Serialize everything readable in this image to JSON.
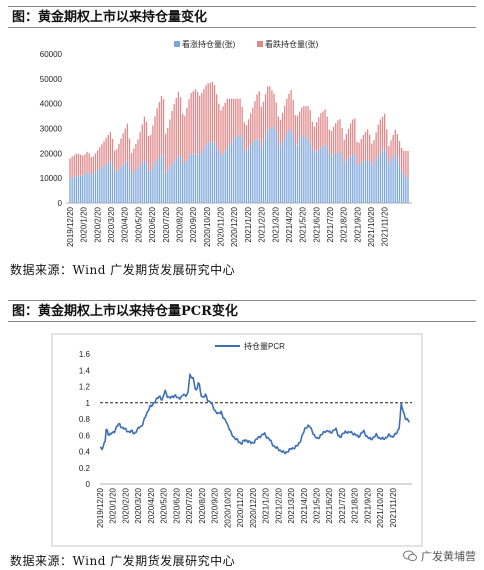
{
  "chart1": {
    "heading": "图：黄金期权上市以来持仓量变化",
    "source": "数据来源：Wind 广发期货发展研究中心"
  },
  "chart2": {
    "heading": "图：黄金期权上市以来持仓量PCR变化",
    "source": "数据来源：Wind 广发期货发展研究中心"
  },
  "watermark": "广发黄埔营",
  "colors": {
    "call": "#7ea6dc",
    "put": "#e0898a",
    "pcr_line": "#3d6fb5"
  },
  "chart_data": [
    {
      "type": "bar",
      "stacked": true,
      "legend_position": "top",
      "ylim": [
        0,
        60000
      ],
      "yticks": [
        "0",
        "10000",
        "20000",
        "30000",
        "40000",
        "50000",
        "60000"
      ],
      "xtick_labels": [
        "2019/12/20",
        "2020/1/20",
        "2020/2/20",
        "2020/3/20",
        "2020/4/20",
        "2020/5/20",
        "2020/6/20",
        "2020/7/20",
        "2020/8/20",
        "2020/9/20",
        "2020/10/20",
        "2020/11/20",
        "2020/12/20",
        "2021/1/20",
        "2021/2/20",
        "2021/3/20",
        "2021/4/20",
        "2021/5/20",
        "2021/6/20",
        "2021/7/20",
        "2021/8/20",
        "2021/9/20",
        "2021/10/20",
        "2021/11/20"
      ],
      "x_start": "2019/12/20",
      "series": [
        {
          "name": "看涨持仓量(张)",
          "anchors": [
            [
              0,
              10000
            ],
            [
              0.5,
              11000
            ],
            [
              1,
              11000
            ],
            [
              1.3,
              13000
            ],
            [
              1.6,
              11000
            ],
            [
              2,
              13000
            ],
            [
              2.5,
              15000
            ],
            [
              3,
              17000
            ],
            [
              3.3,
              12000
            ],
            [
              3.8,
              15000
            ],
            [
              4.2,
              17000
            ],
            [
              4.5,
              12000
            ],
            [
              5,
              14000
            ],
            [
              5.5,
              18000
            ],
            [
              5.8,
              12000
            ],
            [
              6.3,
              17000
            ],
            [
              6.8,
              20000
            ],
            [
              7,
              12000
            ],
            [
              7.5,
              16000
            ],
            [
              8,
              20000
            ],
            [
              8.3,
              15000
            ],
            [
              8.8,
              20000
            ],
            [
              9.2,
              20000
            ],
            [
              9.5,
              19000
            ],
            [
              10,
              24000
            ],
            [
              10.5,
              25000
            ],
            [
              11,
              19000
            ],
            [
              11.5,
              22000
            ],
            [
              12,
              26000
            ],
            [
              12.5,
              28000
            ],
            [
              12.8,
              20000
            ],
            [
              13.4,
              25000
            ],
            [
              13.8,
              26000
            ],
            [
              14,
              22000
            ],
            [
              14.5,
              30000
            ],
            [
              15,
              31000
            ],
            [
              15.3,
              22000
            ],
            [
              15.9,
              29000
            ],
            [
              16.2,
              30000
            ],
            [
              16.5,
              22000
            ],
            [
              17,
              28000
            ],
            [
              17.5,
              25000
            ],
            [
              17.8,
              20000
            ],
            [
              18.3,
              22000
            ],
            [
              18.7,
              24000
            ],
            [
              19,
              19000
            ],
            [
              19.5,
              20000
            ],
            [
              19.8,
              21000
            ],
            [
              20,
              16000
            ],
            [
              20.5,
              19000
            ],
            [
              20.8,
              20000
            ],
            [
              21,
              15000
            ],
            [
              21.5,
              17000
            ],
            [
              21.8,
              18000
            ],
            [
              22.1,
              15000
            ],
            [
              22.6,
              20000
            ],
            [
              23,
              22000
            ],
            [
              23.3,
              16000
            ],
            [
              23.8,
              20000
            ],
            [
              24.3,
              12000
            ],
            [
              24.6,
              10000
            ]
          ]
        },
        {
          "name": "看跌持仓量(张)",
          "anchors": [
            [
              0,
              8000
            ],
            [
              0.5,
              9000
            ],
            [
              1,
              8000
            ],
            [
              1.3,
              8000
            ],
            [
              1.6,
              7000
            ],
            [
              2,
              8000
            ],
            [
              2.5,
              10000
            ],
            [
              3,
              12000
            ],
            [
              3.3,
              8000
            ],
            [
              3.8,
              12000
            ],
            [
              4.2,
              15000
            ],
            [
              4.5,
              8000
            ],
            [
              5,
              12000
            ],
            [
              5.5,
              18000
            ],
            [
              5.8,
              13000
            ],
            [
              6.3,
              20000
            ],
            [
              6.8,
              25000
            ],
            [
              7,
              15000
            ],
            [
              7.5,
              22000
            ],
            [
              8,
              26000
            ],
            [
              8.3,
              18000
            ],
            [
              8.8,
              24000
            ],
            [
              9.2,
              26000
            ],
            [
              9.5,
              24000
            ],
            [
              10,
              24000
            ],
            [
              10.5,
              24000
            ],
            [
              11,
              18000
            ],
            [
              11.5,
              20000
            ],
            [
              12,
              16000
            ],
            [
              12.5,
              14000
            ],
            [
              12.8,
              10000
            ],
            [
              13.4,
              14000
            ],
            [
              13.8,
              20000
            ],
            [
              14,
              16000
            ],
            [
              14.5,
              18000
            ],
            [
              15,
              12000
            ],
            [
              15.3,
              10000
            ],
            [
              15.9,
              14000
            ],
            [
              16.2,
              16000
            ],
            [
              16.5,
              12000
            ],
            [
              17,
              11000
            ],
            [
              17.5,
              14000
            ],
            [
              17.8,
              10000
            ],
            [
              18.3,
              14000
            ],
            [
              18.7,
              14000
            ],
            [
              19,
              9000
            ],
            [
              19.5,
              13000
            ],
            [
              19.8,
              13000
            ],
            [
              20,
              9000
            ],
            [
              20.5,
              13000
            ],
            [
              20.8,
              15000
            ],
            [
              21,
              8000
            ],
            [
              21.5,
              11000
            ],
            [
              21.8,
              12000
            ],
            [
              22.1,
              8000
            ],
            [
              22.6,
              13000
            ],
            [
              23,
              14000
            ],
            [
              23.3,
              7000
            ],
            [
              23.8,
              10000
            ],
            [
              24.3,
              9000
            ],
            [
              24.6,
              11000
            ]
          ]
        }
      ]
    },
    {
      "type": "line",
      "legend_position": "top",
      "ylim": [
        0,
        1.6
      ],
      "yticks": [
        "0",
        "0.2",
        "0.4",
        "0.6",
        "0.8",
        "1",
        "1.2",
        "1.4",
        "1.6"
      ],
      "reference_line": 1,
      "xtick_labels": [
        "2019/12/20",
        "2020/1/20",
        "2020/2/20",
        "2020/3/20",
        "2020/4/20",
        "2020/5/20",
        "2020/6/20",
        "2020/7/20",
        "2020/8/20",
        "2020/9/20",
        "2020/10/20",
        "2020/11/20",
        "2020/12/20",
        "2021/1/20",
        "2021/2/20",
        "2021/3/20",
        "2021/4/20",
        "2021/5/20",
        "2021/6/20",
        "2021/7/20",
        "2021/8/20",
        "2021/9/20",
        "2021/10/20",
        "2021/11/20"
      ],
      "x_start": "2019/12/20",
      "series": [
        {
          "name": "持仓量PCR",
          "points": [
            [
              0,
              0.45
            ],
            [
              0.2,
              0.44
            ],
            [
              0.4,
              0.52
            ],
            [
              0.5,
              0.69
            ],
            [
              0.7,
              0.6
            ],
            [
              0.9,
              0.62
            ],
            [
              1.1,
              0.64
            ],
            [
              1.3,
              0.7
            ],
            [
              1.5,
              0.74
            ],
            [
              1.7,
              0.7
            ],
            [
              1.9,
              0.68
            ],
            [
              2.1,
              0.66
            ],
            [
              2.3,
              0.64
            ],
            [
              2.5,
              0.65
            ],
            [
              2.7,
              0.62
            ],
            [
              2.9,
              0.66
            ],
            [
              3.1,
              0.7
            ],
            [
              3.3,
              0.72
            ],
            [
              3.5,
              0.8
            ],
            [
              3.7,
              0.88
            ],
            [
              3.9,
              0.95
            ],
            [
              4.1,
              0.96
            ],
            [
              4.3,
              1.02
            ],
            [
              4.5,
              1.05
            ],
            [
              4.7,
              1.08
            ],
            [
              4.9,
              1.03
            ],
            [
              5.1,
              1.15
            ],
            [
              5.3,
              1.08
            ],
            [
              5.5,
              1.06
            ],
            [
              5.7,
              1.07
            ],
            [
              5.9,
              1.1
            ],
            [
              6.1,
              1.05
            ],
            [
              6.3,
              1.06
            ],
            [
              6.5,
              1.1
            ],
            [
              6.7,
              1.08
            ],
            [
              6.9,
              1.12
            ],
            [
              7.05,
              1.35
            ],
            [
              7.15,
              1.3
            ],
            [
              7.3,
              1.32
            ],
            [
              7.45,
              1.2
            ],
            [
              7.6,
              1.13
            ],
            [
              7.75,
              1.28
            ],
            [
              7.9,
              1.12
            ],
            [
              8.1,
              1.05
            ],
            [
              8.3,
              1.1
            ],
            [
              8.5,
              1.02
            ],
            [
              8.7,
              1.0
            ],
            [
              8.9,
              0.95
            ],
            [
              9.1,
              0.88
            ],
            [
              9.3,
              0.86
            ],
            [
              9.5,
              0.9
            ],
            [
              9.7,
              0.8
            ],
            [
              9.9,
              0.78
            ],
            [
              10.1,
              0.7
            ],
            [
              10.3,
              0.62
            ],
            [
              10.5,
              0.58
            ],
            [
              10.7,
              0.55
            ],
            [
              10.9,
              0.52
            ],
            [
              11.1,
              0.5
            ],
            [
              11.3,
              0.53
            ],
            [
              11.5,
              0.54
            ],
            [
              11.7,
              0.52
            ],
            [
              11.9,
              0.5
            ],
            [
              12.1,
              0.52
            ],
            [
              12.3,
              0.55
            ],
            [
              12.5,
              0.58
            ],
            [
              12.7,
              0.6
            ],
            [
              12.9,
              0.62
            ],
            [
              13.1,
              0.58
            ],
            [
              13.3,
              0.55
            ],
            [
              13.5,
              0.5
            ],
            [
              13.7,
              0.46
            ],
            [
              13.9,
              0.44
            ],
            [
              14.1,
              0.42
            ],
            [
              14.3,
              0.4
            ],
            [
              14.5,
              0.38
            ],
            [
              14.7,
              0.4
            ],
            [
              14.9,
              0.42
            ],
            [
              15.1,
              0.44
            ],
            [
              15.3,
              0.45
            ],
            [
              15.5,
              0.47
            ],
            [
              15.7,
              0.52
            ],
            [
              15.9,
              0.6
            ],
            [
              16.1,
              0.68
            ],
            [
              16.3,
              0.72
            ],
            [
              16.5,
              0.7
            ],
            [
              16.7,
              0.64
            ],
            [
              16.9,
              0.58
            ],
            [
              17.1,
              0.55
            ],
            [
              17.3,
              0.6
            ],
            [
              17.5,
              0.62
            ],
            [
              17.7,
              0.65
            ],
            [
              17.9,
              0.66
            ],
            [
              18.1,
              0.62
            ],
            [
              18.3,
              0.66
            ],
            [
              18.5,
              0.68
            ],
            [
              18.7,
              0.6
            ],
            [
              18.9,
              0.58
            ],
            [
              19.1,
              0.62
            ],
            [
              19.3,
              0.65
            ],
            [
              19.5,
              0.63
            ],
            [
              19.7,
              0.64
            ],
            [
              19.9,
              0.62
            ],
            [
              20.1,
              0.6
            ],
            [
              20.3,
              0.58
            ],
            [
              20.5,
              0.62
            ],
            [
              20.7,
              0.65
            ],
            [
              20.9,
              0.6
            ],
            [
              21.1,
              0.56
            ],
            [
              21.3,
              0.55
            ],
            [
              21.5,
              0.58
            ],
            [
              21.7,
              0.6
            ],
            [
              21.9,
              0.57
            ],
            [
              22.1,
              0.56
            ],
            [
              22.3,
              0.55
            ],
            [
              22.5,
              0.58
            ],
            [
              22.7,
              0.6
            ],
            [
              22.9,
              0.58
            ],
            [
              23.1,
              0.6
            ],
            [
              23.3,
              0.62
            ],
            [
              23.5,
              0.7
            ],
            [
              23.65,
              0.98
            ],
            [
              23.8,
              0.9
            ],
            [
              23.95,
              0.82
            ],
            [
              24.1,
              0.8
            ],
            [
              24.3,
              0.76
            ]
          ]
        }
      ]
    }
  ]
}
